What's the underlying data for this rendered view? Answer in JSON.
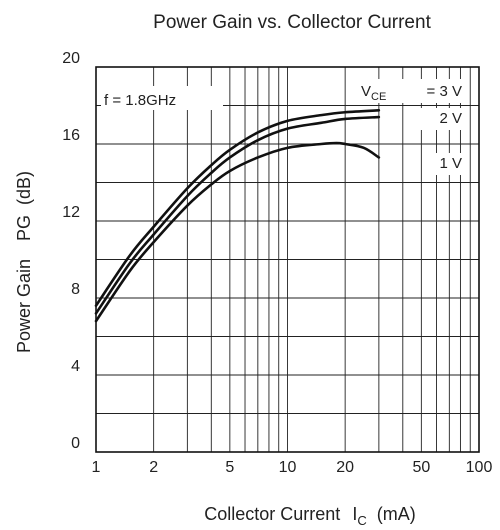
{
  "chart_data": {
    "type": "line",
    "title": "Power Gain vs. Collector Current",
    "xlabel": {
      "main": "Collector Current",
      "symbol": "I",
      "subscript": "C",
      "unit": "(mA)"
    },
    "ylabel": {
      "main": "Power Gain",
      "symbol": "PG",
      "unit": "(dB)"
    },
    "x_scale": "log",
    "xlim": [
      1,
      100
    ],
    "ylim": [
      0,
      20
    ],
    "x_ticks": [
      1,
      2,
      5,
      10,
      20,
      50,
      100
    ],
    "x_tick_labels": [
      "1",
      "2",
      "5",
      "10",
      "20",
      "50",
      "100"
    ],
    "x_minor_gridlines": [
      3,
      4,
      6,
      7,
      8,
      9,
      30,
      40,
      60,
      70,
      80,
      90
    ],
    "y_ticks": [
      0,
      4,
      8,
      12,
      16,
      20
    ],
    "y_tick_labels": [
      "0",
      "4",
      "8",
      "12",
      "16",
      "20"
    ],
    "y_minor_gridlines": [
      2,
      6,
      10,
      14,
      18
    ],
    "grid": true,
    "annotation": "f = 1.8GHz",
    "legend_symbol": {
      "main": "V",
      "subscript": "CE"
    },
    "series": [
      {
        "name": "= 3 V",
        "x": [
          1,
          1.5,
          2,
          3,
          4,
          5,
          7,
          10,
          15,
          20,
          30
        ],
        "y": [
          7.6,
          10.2,
          11.7,
          13.7,
          14.9,
          15.7,
          16.6,
          17.2,
          17.5,
          17.65,
          17.75
        ]
      },
      {
        "name": "2 V",
        "x": [
          1,
          1.5,
          2,
          3,
          4,
          5,
          7,
          10,
          15,
          20,
          30
        ],
        "y": [
          7.2,
          9.8,
          11.3,
          13.3,
          14.5,
          15.3,
          16.2,
          16.8,
          17.1,
          17.3,
          17.4
        ]
      },
      {
        "name": "1 V",
        "x": [
          1,
          1.5,
          2,
          3,
          4,
          5,
          7,
          10,
          15,
          18,
          20,
          25,
          30
        ],
        "y": [
          6.8,
          9.4,
          10.9,
          12.8,
          13.9,
          14.6,
          15.3,
          15.8,
          16.0,
          16.05,
          16.0,
          15.8,
          15.3
        ]
      }
    ]
  }
}
